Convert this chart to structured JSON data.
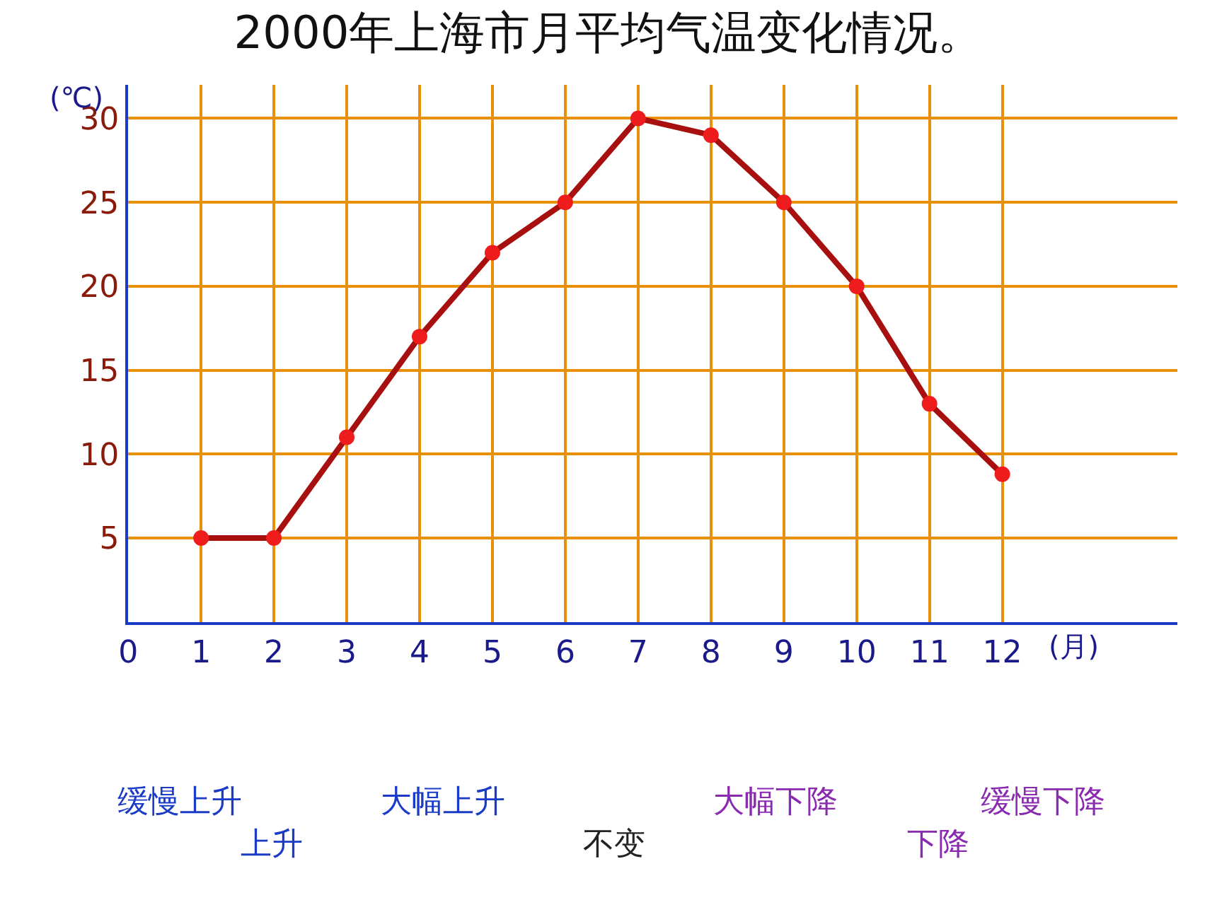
{
  "chart_data": {
    "type": "line",
    "title": "2000年上海市月平均气温变化情况。",
    "xlabel": "(月)",
    "ylabel": "(℃)",
    "x": [
      1,
      2,
      3,
      4,
      5,
      6,
      7,
      8,
      9,
      10,
      11,
      12
    ],
    "series": [
      {
        "color": "#a81010",
        "values": [
          5,
          5,
          11,
          17,
          22,
          25,
          30,
          29,
          25,
          20,
          13,
          8.8
        ]
      }
    ],
    "xlim": [
      0,
      14.4
    ],
    "xticks": [
      0,
      1,
      2,
      3,
      4,
      5,
      6,
      7,
      8,
      9,
      10,
      11,
      12
    ],
    "ylim": [
      0,
      32
    ],
    "yticks": [
      {
        "value": 0,
        "label": null
      },
      5,
      10,
      15,
      20,
      25,
      30
    ],
    "grid": true,
    "marker": "circle",
    "line_style": "solid",
    "annotations": [
      "缓慢上升",
      "上升",
      "大幅上升",
      "不变",
      "大幅下降",
      "下降",
      "缓慢下降"
    ]
  }
}
